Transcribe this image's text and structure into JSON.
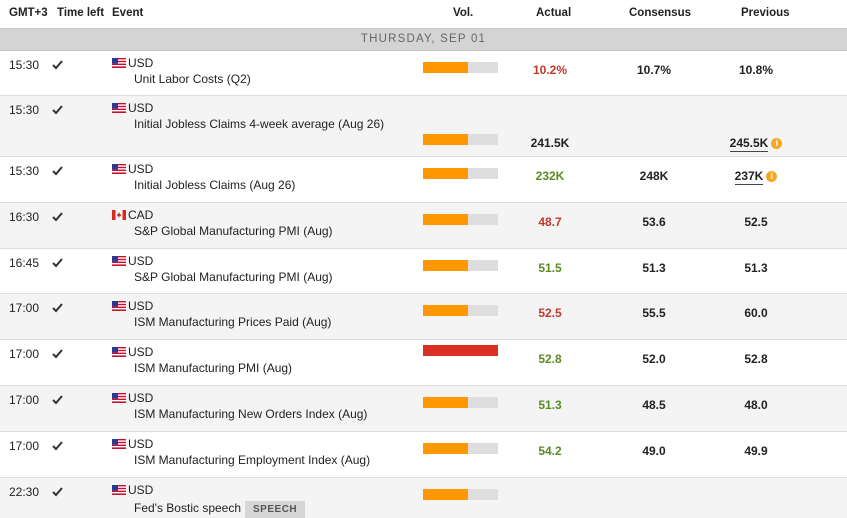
{
  "columns": {
    "tz": "GMT+3",
    "time_left": "Time left",
    "event": "Event",
    "vol": "Vol.",
    "actual": "Actual",
    "consensus": "Consensus",
    "previous": "Previous"
  },
  "day_label": "THURSDAY, SEP 01",
  "info_glyph": "i",
  "colors": {
    "orange": "#ff9800",
    "high": "#d93023",
    "red": "#c0392b",
    "green": "#5c8a23"
  },
  "rows": [
    {
      "time": "15:30",
      "currency": "USD",
      "flag": "us-flag",
      "event": "Unit Labor Costs (Q2)",
      "vol_pct": 60,
      "actual": "10.2%",
      "consensus": "10.7%",
      "previous": "10.8%"
    },
    {
      "time": "15:30",
      "currency": "USD",
      "flag": "us-flag",
      "event": "Initial Jobless Claims 4-week average (Aug 26)",
      "vol_pct": 60,
      "actual": "241.5K",
      "consensus": "",
      "previous": "245.5K"
    },
    {
      "time": "15:30",
      "currency": "USD",
      "flag": "us-flag",
      "event": "Initial Jobless Claims (Aug 26)",
      "vol_pct": 60,
      "actual": "232K",
      "consensus": "248K",
      "previous": "237K"
    },
    {
      "time": "16:30",
      "currency": "CAD",
      "flag": "ca-flag",
      "event": "S&P Global Manufacturing PMI (Aug)",
      "vol_pct": 60,
      "actual": "48.7",
      "consensus": "53.6",
      "previous": "52.5"
    },
    {
      "time": "16:45",
      "currency": "USD",
      "flag": "us-flag",
      "event": "S&P Global Manufacturing PMI (Aug)",
      "vol_pct": 60,
      "actual": "51.5",
      "consensus": "51.3",
      "previous": "51.3"
    },
    {
      "time": "17:00",
      "currency": "USD",
      "flag": "us-flag",
      "event": "ISM Manufacturing Prices Paid (Aug)",
      "vol_pct": 60,
      "actual": "52.5",
      "consensus": "55.5",
      "previous": "60.0"
    },
    {
      "time": "17:00",
      "currency": "USD",
      "flag": "us-flag",
      "event": "ISM Manufacturing PMI (Aug)",
      "vol_pct": 100,
      "actual": "52.8",
      "consensus": "52.0",
      "previous": "52.8"
    },
    {
      "time": "17:00",
      "currency": "USD",
      "flag": "us-flag",
      "event": "ISM Manufacturing New Orders Index (Aug)",
      "vol_pct": 60,
      "actual": "51.3",
      "consensus": "48.5",
      "previous": "48.0"
    },
    {
      "time": "17:00",
      "currency": "USD",
      "flag": "us-flag",
      "event": "ISM Manufacturing Employment Index (Aug)",
      "vol_pct": 60,
      "actual": "54.2",
      "consensus": "49.0",
      "previous": "49.9"
    },
    {
      "time": "22:30",
      "currency": "USD",
      "flag": "us-flag",
      "event": "Fed's Bostic speech",
      "badge": "SPEECH",
      "vol_pct": 60,
      "actual": "",
      "consensus": "",
      "previous": ""
    }
  ]
}
